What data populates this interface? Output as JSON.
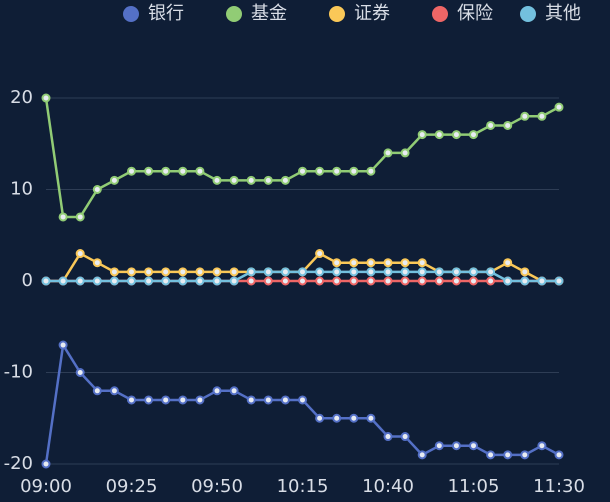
{
  "chart_data": {
    "type": "line",
    "categories": [
      "09:00",
      null,
      null,
      null,
      null,
      "09:25",
      null,
      null,
      null,
      null,
      "09:50",
      null,
      null,
      null,
      null,
      "10:15",
      null,
      null,
      null,
      null,
      "10:40",
      null,
      null,
      null,
      null,
      "11:05",
      null,
      null,
      null,
      null,
      "11:30"
    ],
    "series": [
      {
        "name": "银行",
        "color": "#5470c6",
        "values": [
          -20,
          -7,
          -10,
          -12,
          -12,
          -13,
          -13,
          -13,
          -13,
          -13,
          -12,
          -12,
          -13,
          -13,
          -13,
          -13,
          -15,
          -15,
          -15,
          -15,
          -17,
          -17,
          -19,
          -18,
          -18,
          -18,
          -19,
          -19,
          -19,
          -18,
          -19
        ]
      },
      {
        "name": "基金",
        "color": "#91cc75",
        "values": [
          20,
          7,
          7,
          10,
          11,
          12,
          12,
          12,
          12,
          12,
          11,
          11,
          11,
          11,
          11,
          12,
          12,
          12,
          12,
          12,
          14,
          14,
          16,
          16,
          16,
          16,
          17,
          17,
          18,
          18,
          19
        ]
      },
      {
        "name": "证券",
        "color": "#fac858",
        "values": [
          0,
          0,
          3,
          2,
          1,
          1,
          1,
          1,
          1,
          1,
          1,
          1,
          1,
          1,
          1,
          1,
          3,
          2,
          2,
          2,
          2,
          2,
          2,
          1,
          1,
          1,
          1,
          2,
          1,
          0,
          0
        ]
      },
      {
        "name": "保险",
        "color": "#ee6666",
        "values": [
          0,
          0,
          0,
          0,
          0,
          0,
          0,
          0,
          0,
          0,
          0,
          0,
          0,
          0,
          0,
          0,
          0,
          0,
          0,
          0,
          0,
          0,
          0,
          0,
          0,
          0,
          0,
          0,
          0,
          0,
          0
        ]
      },
      {
        "name": "其他",
        "color": "#73c0de",
        "values": [
          0,
          0,
          0,
          0,
          0,
          0,
          0,
          0,
          0,
          0,
          0,
          0,
          1,
          1,
          1,
          1,
          1,
          1,
          1,
          1,
          1,
          1,
          1,
          1,
          1,
          1,
          1,
          0,
          0,
          0,
          0
        ]
      }
    ],
    "ylim": [
      -20,
      20
    ],
    "yticks": [
      -20,
      -10,
      0,
      10,
      20
    ],
    "grid": true,
    "legend": "top"
  }
}
